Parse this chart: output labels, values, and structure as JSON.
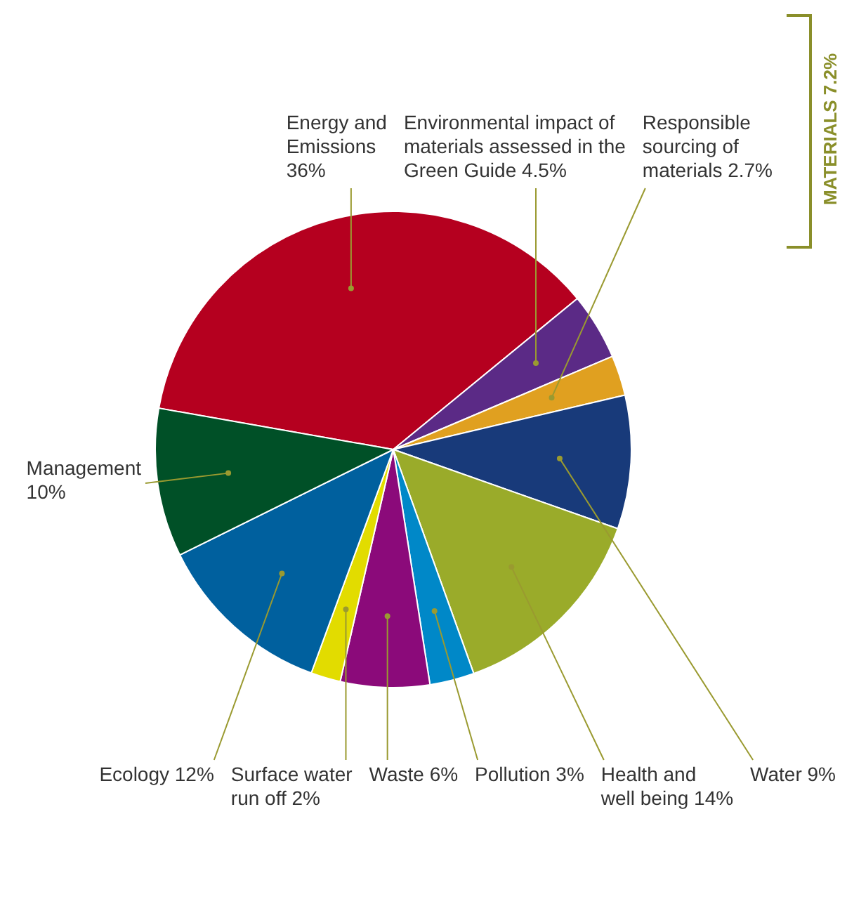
{
  "chart_data": {
    "type": "pie",
    "categories": [
      "Energy and Emissions",
      "Environmental impact of materials assessed in the Green Guide",
      "Responsible sourcing of materials",
      "Water",
      "Health and well being",
      "Pollution",
      "Waste",
      "Surface water run off",
      "Ecology",
      "Management"
    ],
    "values": [
      36,
      4.5,
      2.7,
      9,
      14,
      3,
      6,
      2,
      12,
      10
    ],
    "value_labels": [
      "36%",
      "4.5%",
      "2.7%",
      "9%",
      "14%",
      "3%",
      "6%",
      "2%",
      "12%",
      "10%"
    ],
    "colors": [
      "#b5001f",
      "#5b2a86",
      "#e0a020",
      "#183a7a",
      "#9aab2a",
      "#0088c8",
      "#8b0a7a",
      "#e2dc00",
      "#00609e",
      "#005027"
    ],
    "annotations": [
      "MATERIALS 7.2%"
    ],
    "legend": false
  }
}
